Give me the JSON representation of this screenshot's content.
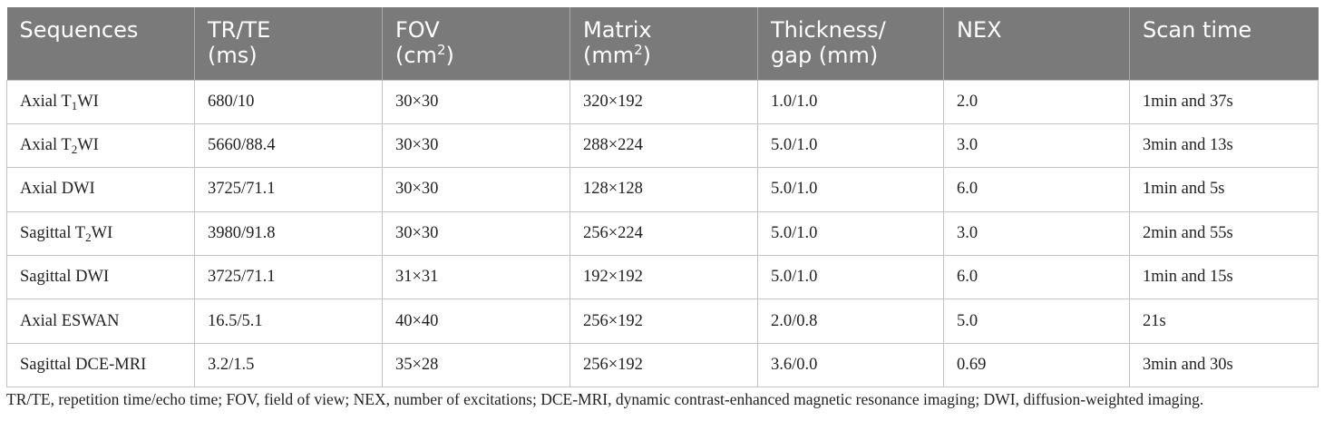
{
  "table": {
    "headers": [
      {
        "line1": "Sequences",
        "line2": ""
      },
      {
        "line1": "TR/TE",
        "line2": "(ms)"
      },
      {
        "line1": "FOV",
        "line2_pre": "(cm",
        "line2_sup": "2",
        "line2_post": ")"
      },
      {
        "line1": "Matrix",
        "line2_pre": "(mm",
        "line2_sup": "2",
        "line2_post": ")"
      },
      {
        "line1": "Thickness/",
        "line2": "gap (mm)"
      },
      {
        "line1": "NEX",
        "line2": ""
      },
      {
        "line1": "Scan time",
        "line2": ""
      }
    ],
    "rows": [
      {
        "seq_pre": "Axial T",
        "seq_sub": "1",
        "seq_post": "WI",
        "tr_te": "680/10",
        "fov": "30×30",
        "matrix": "320×192",
        "thickness": "1.0/1.0",
        "nex": "2.0",
        "scan_time": "1min and 37s"
      },
      {
        "seq_pre": "Axial T",
        "seq_sub": "2",
        "seq_post": "WI",
        "tr_te": "5660/88.4",
        "fov": "30×30",
        "matrix": "288×224",
        "thickness": "5.0/1.0",
        "nex": "3.0",
        "scan_time": "3min and 13s"
      },
      {
        "seq_pre": "Axial DWI",
        "seq_sub": "",
        "seq_post": "",
        "tr_te": "3725/71.1",
        "fov": "30×30",
        "matrix": "128×128",
        "thickness": "5.0/1.0",
        "nex": "6.0",
        "scan_time": "1min and 5s"
      },
      {
        "seq_pre": "Sagittal T",
        "seq_sub": "2",
        "seq_post": "WI",
        "tr_te": "3980/91.8",
        "fov": "30×30",
        "matrix": "256×224",
        "thickness": "5.0/1.0",
        "nex": "3.0",
        "scan_time": "2min and 55s"
      },
      {
        "seq_pre": "Sagittal DWI",
        "seq_sub": "",
        "seq_post": "",
        "tr_te": "3725/71.1",
        "fov": "31×31",
        "matrix": "192×192",
        "thickness": "5.0/1.0",
        "nex": "6.0",
        "scan_time": "1min and 15s"
      },
      {
        "seq_pre": "Axial ESWAN",
        "seq_sub": "",
        "seq_post": "",
        "tr_te": "16.5/5.1",
        "fov": "40×40",
        "matrix": "256×192",
        "thickness": "2.0/0.8",
        "nex": "5.0",
        "scan_time": "21s"
      },
      {
        "seq_pre": "Sagittal DCE-MRI",
        "seq_sub": "",
        "seq_post": "",
        "tr_te": "3.2/1.5",
        "fov": "35×28",
        "matrix": "256×192",
        "thickness": "3.6/0.0",
        "nex": "0.69",
        "scan_time": "3min and 30s"
      }
    ]
  },
  "footnote": "TR/TE, repetition time/echo time; FOV, field of view; NEX, number of excitations; DCE-MRI, dynamic contrast-enhanced magnetic resonance imaging; DWI, diffusion-weighted imaging.",
  "colors": {
    "header_bg": "#7a7a7a",
    "header_text": "#ffffff",
    "border": "#c4c4c4",
    "body_text": "#222222"
  }
}
